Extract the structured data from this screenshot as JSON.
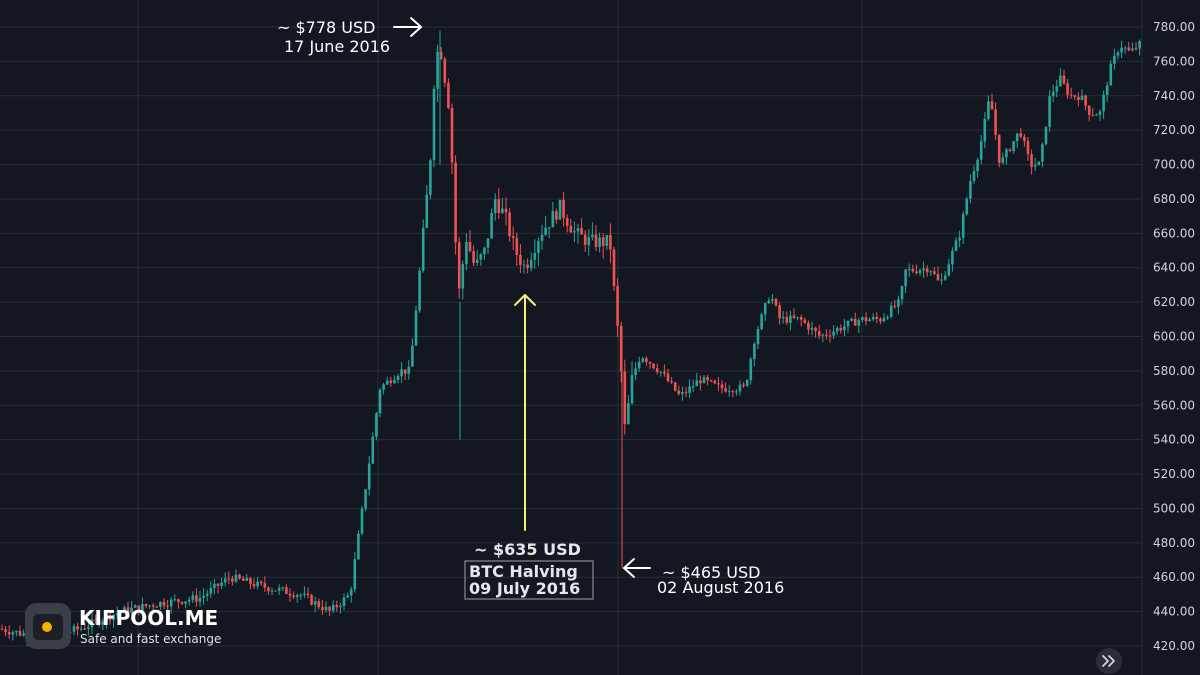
{
  "colors": {
    "background": "#131722",
    "grid": "#2a2e39",
    "up": "#26a69a",
    "down": "#ef5350",
    "tick_text": "#d1d4dc",
    "halving_arrow": "#f5f07a",
    "annotation": "#ffffff"
  },
  "chart_data": {
    "type": "candlestick",
    "title": "",
    "xlabel": "",
    "ylabel": "",
    "ylim": [
      410,
      788
    ],
    "yticks": [
      "420.00",
      "440.00",
      "460.00",
      "480.00",
      "500.00",
      "520.00",
      "540.00",
      "560.00",
      "580.00",
      "600.00",
      "620.00",
      "640.00",
      "660.00",
      "680.00",
      "700.00",
      "720.00",
      "740.00",
      "760.00",
      "780.00"
    ],
    "grid": true,
    "price_path_approx": {
      "note_units": "USD",
      "points": [
        [
          0,
          430
        ],
        [
          40,
          425
        ],
        [
          80,
          430
        ],
        [
          120,
          440
        ],
        [
          160,
          445
        ],
        [
          200,
          448
        ],
        [
          230,
          460
        ],
        [
          260,
          455
        ],
        [
          300,
          450
        ],
        [
          330,
          440
        ],
        [
          350,
          450
        ],
        [
          360,
          490
        ],
        [
          370,
          530
        ],
        [
          380,
          570
        ],
        [
          400,
          580
        ],
        [
          410,
          580
        ],
        [
          420,
          640
        ],
        [
          430,
          700
        ],
        [
          435,
          760
        ],
        [
          440,
          770
        ],
        [
          450,
          730
        ],
        [
          455,
          660
        ],
        [
          460,
          620
        ],
        [
          465,
          660
        ],
        [
          475,
          640
        ],
        [
          485,
          650
        ],
        [
          495,
          680
        ],
        [
          505,
          670
        ],
        [
          515,
          650
        ],
        [
          525,
          640
        ],
        [
          540,
          660
        ],
        [
          560,
          675
        ],
        [
          575,
          660
        ],
        [
          590,
          655
        ],
        [
          610,
          655
        ],
        [
          615,
          620
        ],
        [
          620,
          590
        ],
        [
          625,
          545
        ],
        [
          632,
          575
        ],
        [
          640,
          590
        ],
        [
          660,
          580
        ],
        [
          680,
          565
        ],
        [
          700,
          575
        ],
        [
          720,
          570
        ],
        [
          745,
          570
        ],
        [
          755,
          600
        ],
        [
          770,
          625
        ],
        [
          780,
          610
        ],
        [
          800,
          610
        ],
        [
          820,
          600
        ],
        [
          840,
          605
        ],
        [
          860,
          610
        ],
        [
          880,
          610
        ],
        [
          900,
          620
        ],
        [
          905,
          638
        ],
        [
          930,
          640
        ],
        [
          940,
          630
        ],
        [
          950,
          645
        ],
        [
          960,
          660
        ],
        [
          970,
          690
        ],
        [
          980,
          710
        ],
        [
          990,
          740
        ],
        [
          1000,
          700
        ],
        [
          1010,
          710
        ],
        [
          1020,
          720
        ],
        [
          1030,
          700
        ],
        [
          1040,
          700
        ],
        [
          1050,
          740
        ],
        [
          1060,
          750
        ],
        [
          1070,
          740
        ],
        [
          1080,
          740
        ],
        [
          1090,
          730
        ],
        [
          1100,
          730
        ],
        [
          1110,
          755
        ],
        [
          1120,
          770
        ],
        [
          1130,
          765
        ],
        [
          1140,
          770
        ]
      ]
    },
    "annotations": {
      "peak": {
        "price": "~ $778 USD",
        "date": "17 June 2016"
      },
      "halving": {
        "price": "~ $635 USD",
        "label": "BTC Halving",
        "date": "09 July 2016"
      },
      "low": {
        "price": "~ $465 USD",
        "date": "02 August 2016"
      }
    }
  },
  "logo": {
    "title": "KIFPOOL.ME",
    "subtitle": "Safe and fast exchange"
  },
  "scroll_button_icon": "double-chevron-right-icon"
}
